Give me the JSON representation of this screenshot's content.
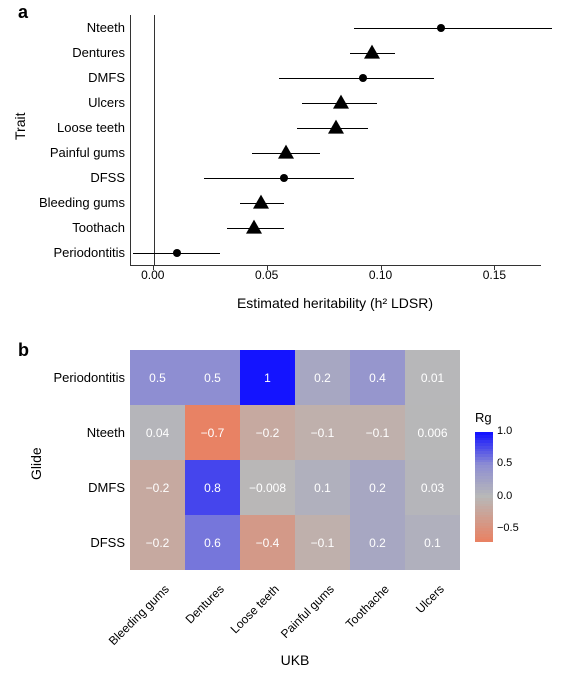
{
  "panelA": {
    "label": "a",
    "ylabel": "Trait",
    "xlabel": "Estimated heritability (h² LDSR)",
    "xlim": [
      -0.01,
      0.17
    ],
    "xticks": [
      0.0,
      0.05,
      0.1,
      0.15
    ],
    "xtick_labels": [
      "0.00",
      "0.05",
      "0.10",
      "0.15"
    ],
    "zero_line": 0.0,
    "traits": [
      {
        "name": "Nteeth",
        "value": 0.126,
        "low": 0.088,
        "high": 0.175,
        "marker": "circle"
      },
      {
        "name": "Dentures",
        "value": 0.096,
        "low": 0.086,
        "high": 0.106,
        "marker": "triangle"
      },
      {
        "name": "DMFS",
        "value": 0.092,
        "low": 0.055,
        "high": 0.123,
        "marker": "circle"
      },
      {
        "name": "Ulcers",
        "value": 0.082,
        "low": 0.065,
        "high": 0.098,
        "marker": "triangle"
      },
      {
        "name": "Loose teeth",
        "value": 0.08,
        "low": 0.063,
        "high": 0.094,
        "marker": "triangle"
      },
      {
        "name": "Painful gums",
        "value": 0.058,
        "low": 0.043,
        "high": 0.073,
        "marker": "triangle"
      },
      {
        "name": "DFSS",
        "value": 0.057,
        "low": 0.022,
        "high": 0.088,
        "marker": "circle"
      },
      {
        "name": "Bleeding gums",
        "value": 0.047,
        "low": 0.038,
        "high": 0.057,
        "marker": "triangle"
      },
      {
        "name": "Toothach",
        "value": 0.044,
        "low": 0.032,
        "high": 0.057,
        "marker": "triangle"
      },
      {
        "name": "Periodontitis",
        "value": 0.01,
        "low": -0.009,
        "high": 0.029,
        "marker": "circle"
      }
    ]
  },
  "panelB": {
    "label": "b",
    "ylabel": "Glide",
    "xlabel": "UKB",
    "legend_title": "Rg",
    "legend_ticks": [
      "1.0",
      "0.5",
      "0.0",
      "−0.5"
    ],
    "legend_vals": [
      1.0,
      0.5,
      0.0,
      -0.5
    ],
    "rows": [
      "Periodontitis",
      "Nteeth",
      "DMFS",
      "DFSS"
    ],
    "cols": [
      "Bleeding gums",
      "Dentures",
      "Loose teeth",
      "Painful gums",
      "Toothache",
      "Ulcers"
    ],
    "values": [
      [
        0.5,
        0.5,
        1,
        0.2,
        0.4,
        0.01
      ],
      [
        0.04,
        -0.7,
        -0.2,
        -0.1,
        -0.1,
        0.006
      ],
      [
        -0.2,
        0.8,
        -0.008,
        0.1,
        0.2,
        0.03
      ],
      [
        -0.2,
        0.6,
        -0.4,
        -0.1,
        0.2,
        0.1
      ]
    ],
    "labels": [
      [
        "0.5",
        "0.5",
        "1",
        "0.2",
        "0.4",
        "0.01"
      ],
      [
        "0.04",
        "−0.7",
        "−0.2",
        "−0.1",
        "−0.1",
        "0.006"
      ],
      [
        "−0.2",
        "0.8",
        "−0.008",
        "0.1",
        "0.2",
        "0.03"
      ],
      [
        "−0.2",
        "0.6",
        "−0.4",
        "−0.1",
        "0.2",
        "0.1"
      ]
    ],
    "color_range": [
      -0.7,
      1.0
    ]
  }
}
